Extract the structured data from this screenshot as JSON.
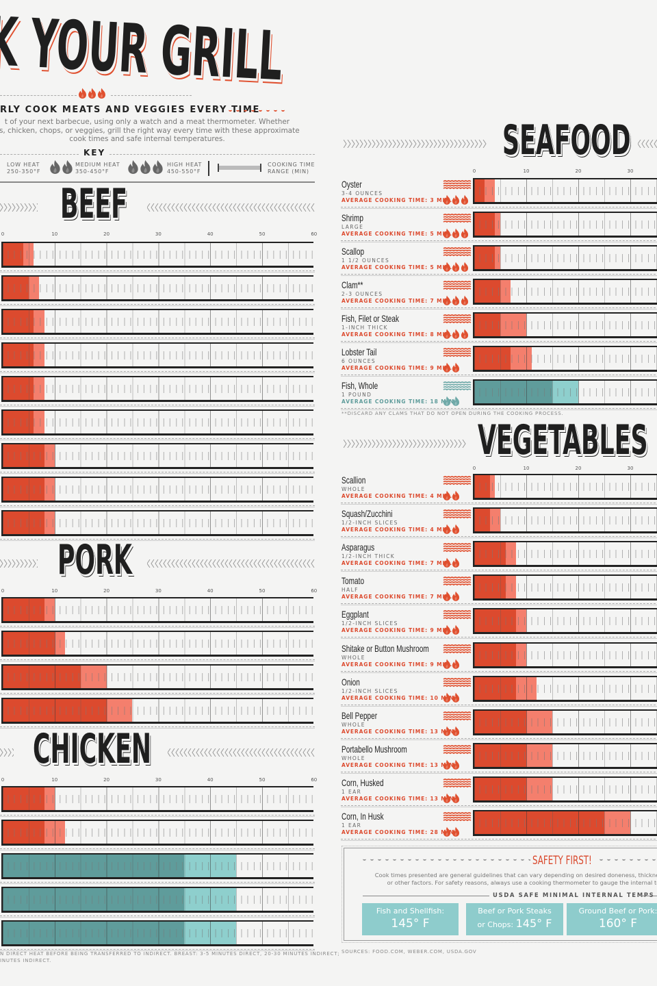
{
  "header": {
    "title": "K YOUR GRILL",
    "subtitle": "RLY COOK MEATS AND VEGGIES EVERY TIME",
    "intro": [
      "t of your next barbecue, using only a watch and a meat thermometer. Whether",
      "gs, chicken, chops, or veggies, grill the right way every time with these approximate",
      "cook times and safe internal temperatures."
    ]
  },
  "key": {
    "title": "KEY",
    "items": [
      {
        "label": "LOW HEAT",
        "range": "250-350°F",
        "flames": 1
      },
      {
        "label": "MEDIUM HEAT",
        "range": "350-450°F",
        "flames": 2
      },
      {
        "label": "HIGH HEAT",
        "range": "450-550°F",
        "flames": 3
      }
    ],
    "range_label": "COOKING TIME",
    "range_label2": "RANGE (MIN)"
  },
  "colors": {
    "direct_dark": "#dc4a2e",
    "direct_light": "#f47f6d",
    "indirect_dark": "#5f9c9b",
    "indirect_light": "#8ecfcd",
    "flame_key": "#666666"
  },
  "chart_data": [
    {
      "type": "bar",
      "section": "BEEF",
      "xlabel": "",
      "xlim": [
        0,
        60
      ],
      "ticks": [
        "0",
        "10",
        "20",
        "30",
        "40",
        "50",
        "60"
      ],
      "items": [
        {
          "range": [
            4,
            6
          ],
          "heat": "direct"
        },
        {
          "range": [
            5,
            7
          ],
          "heat": "direct"
        },
        {
          "range": [
            6,
            8
          ],
          "heat": "direct"
        },
        {
          "range": [
            6,
            8
          ],
          "heat": "direct"
        },
        {
          "range": [
            6,
            8
          ],
          "heat": "direct"
        },
        {
          "range": [
            6,
            8
          ],
          "heat": "direct"
        },
        {
          "range": [
            8,
            10
          ],
          "heat": "direct"
        },
        {
          "range": [
            8,
            10
          ],
          "heat": "direct"
        },
        {
          "range": [
            8,
            10
          ],
          "heat": "direct"
        }
      ]
    },
    {
      "type": "bar",
      "section": "PORK",
      "xlim": [
        0,
        60
      ],
      "ticks": [
        "0",
        "10",
        "20",
        "30",
        "40",
        "50",
        "60"
      ],
      "items": [
        {
          "range": [
            8,
            10
          ],
          "heat": "direct"
        },
        {
          "range": [
            10,
            12
          ],
          "heat": "direct"
        },
        {
          "range": [
            15,
            20
          ],
          "heat": "direct"
        },
        {
          "range": [
            20,
            25
          ],
          "heat": "direct"
        }
      ]
    },
    {
      "type": "bar",
      "section": "CHICKEN",
      "xlim": [
        0,
        60
      ],
      "ticks": [
        "0",
        "10",
        "20",
        "30",
        "40",
        "50",
        "60"
      ],
      "items": [
        {
          "range": [
            8,
            10
          ],
          "heat": "direct"
        },
        {
          "range": [
            8,
            12
          ],
          "heat": "direct"
        },
        {
          "range": [
            35,
            45
          ],
          "heat": "indirect"
        },
        {
          "range": [
            35,
            45
          ],
          "heat": "indirect"
        },
        {
          "range": [
            35,
            45
          ],
          "heat": "indirect"
        }
      ],
      "footnote": [
        "N DIRECT HEAT BEFORE BEING TRANSFERRED TO INDIRECT. BREAST: 3-5 MINUTES DIRECT, 20-30 MINUTES INDIRECT;",
        "INUTES INDIRECT."
      ]
    },
    {
      "type": "bar",
      "section": "SEAFOOD",
      "xlim": [
        0,
        60
      ],
      "ticks": [
        "0",
        "10",
        "20",
        "30"
      ],
      "items": [
        {
          "name": "Oyster",
          "detail": "3-4 OUNCES",
          "avg": "AVERAGE COOKING TIME: 3 MIN.",
          "range": [
            2,
            4
          ],
          "heat": "direct",
          "flames": 3
        },
        {
          "name": "Shrimp",
          "detail": "LARGE",
          "avg": "AVERAGE COOKING TIME: 5 MIN.",
          "range": [
            4,
            5
          ],
          "heat": "direct",
          "flames": 3
        },
        {
          "name": "Scallop",
          "detail": "1 1/2 OUNCES",
          "avg": "AVERAGE COOKING TIME: 5 MIN.",
          "range": [
            4,
            5
          ],
          "heat": "direct",
          "flames": 3
        },
        {
          "name": "Clam**",
          "detail": "2-3 OUNCES",
          "avg": "AVERAGE COOKING TIME: 7 MIN.",
          "range": [
            5,
            7
          ],
          "heat": "direct",
          "flames": 3
        },
        {
          "name": "Fish, Filet or Steak",
          "detail": "1-INCH THICK",
          "avg": "AVERAGE COOKING TIME: 8 MIN.",
          "range": [
            5,
            10
          ],
          "heat": "direct",
          "flames": 3
        },
        {
          "name": "Lobster Tail",
          "detail": "6 OUNCES",
          "avg": "AVERAGE COOKING TIME: 9 MIN.",
          "range": [
            7,
            11
          ],
          "heat": "direct",
          "flames": 2
        },
        {
          "name": "Fish, Whole",
          "detail": "1 POUND",
          "avg": "AVERAGE COOKING TIME: 18 MIN.",
          "range": [
            15,
            20
          ],
          "heat": "indirect",
          "flames": 2
        }
      ],
      "footnote": "**DISCARD ANY CLAMS THAT DO NOT OPEN DURING THE COOKING PROCESS."
    },
    {
      "type": "bar",
      "section": "VEGETABLES",
      "xlim": [
        0,
        60
      ],
      "ticks": [
        "0",
        "10",
        "20",
        "30"
      ],
      "items": [
        {
          "name": "Scallion",
          "detail": "WHOLE",
          "avg": "AVERAGE COOKING TIME: 4 MIN.",
          "range": [
            3,
            4
          ],
          "heat": "direct",
          "flames": 2
        },
        {
          "name": "Squash/Zucchini",
          "detail": "1/2-INCH SLICES",
          "avg": "AVERAGE COOKING TIME: 4 MIN.",
          "range": [
            3,
            5
          ],
          "heat": "direct",
          "flames": 2
        },
        {
          "name": "Asparagus",
          "detail": "1/2-INCH THICK",
          "avg": "AVERAGE COOKING TIME: 7 MIN.",
          "range": [
            6,
            8
          ],
          "heat": "direct",
          "flames": 2
        },
        {
          "name": "Tomato",
          "detail": "HALF",
          "avg": "AVERAGE COOKING TIME: 7 MIN.",
          "range": [
            6,
            8
          ],
          "heat": "direct",
          "flames": 2
        },
        {
          "name": "Eggplant",
          "detail": "1/2-INCH SLICES",
          "avg": "AVERAGE COOKING TIME: 9 MIN.",
          "range": [
            8,
            10
          ],
          "heat": "direct",
          "flames": 2
        },
        {
          "name": "Shitake or Button Mushroom",
          "detail": "WHOLE",
          "avg": "AVERAGE COOKING TIME: 9 MIN.",
          "range": [
            8,
            10
          ],
          "heat": "direct",
          "flames": 2
        },
        {
          "name": "Onion",
          "detail": "1/2-INCH SLICES",
          "avg": "AVERAGE COOKING TIME: 10 MIN.",
          "range": [
            8,
            12
          ],
          "heat": "direct",
          "flames": 2
        },
        {
          "name": "Bell Pepper",
          "detail": "WHOLE",
          "avg": "AVERAGE COOKING TIME: 13 MIN.",
          "range": [
            10,
            15
          ],
          "heat": "direct",
          "flames": 2
        },
        {
          "name": "Portabello Mushroom",
          "detail": "WHOLE",
          "avg": "AVERAGE COOKING TIME: 13 MIN.",
          "range": [
            10,
            15
          ],
          "heat": "direct",
          "flames": 2
        },
        {
          "name": "Corn, Husked",
          "detail": "1 EAR",
          "avg": "AVERAGE COOKING TIME: 13 MIN.",
          "range": [
            10,
            15
          ],
          "heat": "direct",
          "flames": 2
        },
        {
          "name": "Corn, In Husk",
          "detail": "1 EAR",
          "avg": "AVERAGE COOKING TIME: 28 MIN.",
          "range": [
            25,
            30
          ],
          "heat": "direct",
          "flames": 2
        }
      ]
    }
  ],
  "safety": {
    "title": "SAFETY FIRST!",
    "text": [
      "Cook times presented are general guidelines that can vary depending on desired doneness, thickness, a",
      "or other factors. For safety reasons, always use a cooking thermometer to gauge the internal te"
    ],
    "temps_title": "USDA SAFE MINIMAL INTERNAL TEMPS",
    "temps": [
      {
        "label": "Fish and Shellfish:",
        "value": "145° F"
      },
      {
        "label": "Beef or Pork Steaks",
        "label2": "or Chops:",
        "value": "145° F"
      },
      {
        "label": "Ground Beef or Pork:",
        "value": "160° F"
      }
    ]
  },
  "sources": "SOURCES: FOOD.COM, WEBER.COM, USDA.GOV"
}
